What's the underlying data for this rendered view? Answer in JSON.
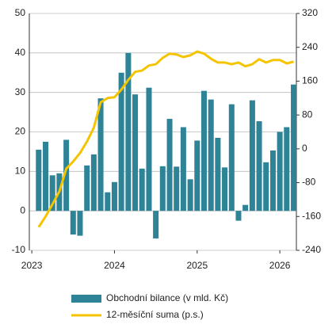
{
  "chart_data": {
    "type": "bar-line",
    "x": [
      2023.083,
      2023.167,
      2023.25,
      2023.333,
      2023.417,
      2023.5,
      2023.583,
      2023.667,
      2023.75,
      2023.833,
      2023.917,
      2024.0,
      2024.083,
      2024.167,
      2024.25,
      2024.333,
      2024.417,
      2024.5,
      2024.583,
      2024.667,
      2024.75,
      2024.833,
      2024.917,
      2025.0,
      2025.083,
      2025.167,
      2025.25,
      2025.333,
      2025.417,
      2025.5,
      2025.583,
      2025.667,
      2025.75,
      2025.833,
      2025.917,
      2026.0,
      2026.083,
      2026.167
    ],
    "series": [
      {
        "name": "Obchodní bilance (v mld. Kč)",
        "color": "#2e8397",
        "kind": "bar",
        "values": [
          15.5,
          17.5,
          9,
          9.5,
          18,
          -6,
          -6.3,
          11.5,
          14.3,
          28.5,
          4.7,
          7.3,
          35,
          40,
          29.5,
          10.7,
          31.2,
          -7,
          11.3,
          23.3,
          11.2,
          21.2,
          8,
          17.8,
          30.4,
          28.2,
          18.5,
          11,
          27,
          -2.5,
          1.5,
          28,
          22.7,
          12.3,
          15.3,
          20,
          21.2,
          32
        ]
      },
      {
        "name": "12-měsíční suma (p.s.)",
        "color": "#f5c400",
        "kind": "line",
        "axis": "y2",
        "values": [
          -185,
          -160,
          -131,
          -101,
          -47,
          -30,
          -10,
          17,
          50,
          110,
          120,
          122,
          140,
          163,
          182,
          185,
          197,
          200,
          215,
          225,
          223,
          217,
          221,
          230,
          225,
          213,
          204,
          204,
          200,
          204,
          195,
          200,
          212,
          204,
          210,
          210,
          202,
          206
        ]
      }
    ],
    "xlim": [
      2022.97,
      2026.2
    ],
    "xticks": [
      2023,
      2024,
      2025,
      2026
    ],
    "ylim": [
      -10,
      50
    ],
    "yticks": [
      -10,
      0,
      10,
      20,
      30,
      40,
      50
    ],
    "y2lim": [
      -240,
      320
    ],
    "y2ticks": [
      -240,
      -160,
      -80,
      0,
      80,
      160,
      240,
      320
    ],
    "grid": true,
    "legend": "bottom"
  }
}
